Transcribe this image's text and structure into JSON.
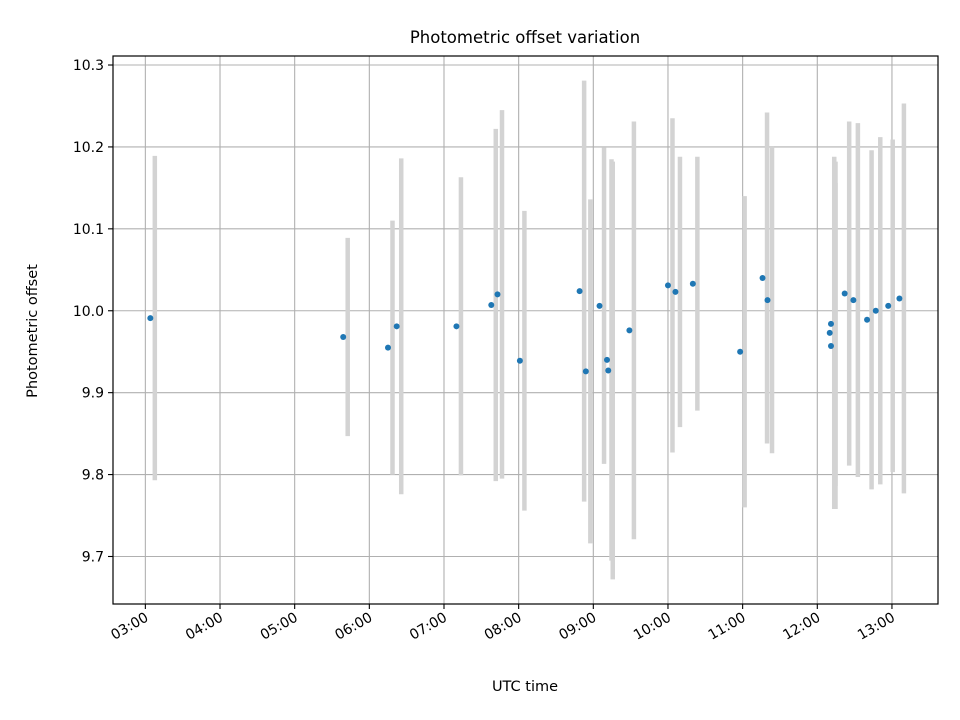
{
  "chart_data": {
    "type": "scatter",
    "title": "Photometric offset variation",
    "xlabel": "UTC time",
    "ylabel": "Photometric offset",
    "xlim": [
      "02:34",
      "13:37"
    ],
    "ylim": [
      9.642,
      10.311
    ],
    "x_ticks": [
      "03:00",
      "04:00",
      "05:00",
      "06:00",
      "07:00",
      "08:00",
      "09:00",
      "10:00",
      "11:00",
      "12:00",
      "13:00"
    ],
    "y_ticks": [
      "9.7",
      "9.8",
      "9.9",
      "10.0",
      "10.1",
      "10.2",
      "10.3"
    ],
    "grid": true,
    "colors": {
      "marker": "#1f77b4",
      "errorbar": "#d3d3d3",
      "grid": "#b0b0b0"
    },
    "series": [
      {
        "points": [
          {
            "t": "03:04",
            "y": 9.991,
            "err": 0.198
          },
          {
            "t": "05:39",
            "y": 9.968,
            "err": 0.121
          },
          {
            "t": "06:15",
            "y": 9.955,
            "err": 0.155
          },
          {
            "t": "06:22",
            "y": 9.981,
            "err": 0.205
          },
          {
            "t": "07:10",
            "y": 9.981,
            "err": 0.182
          },
          {
            "t": "07:38",
            "y": 10.007,
            "err": 0.215
          },
          {
            "t": "07:43",
            "y": 10.02,
            "err": 0.225
          },
          {
            "t": "08:01",
            "y": 9.939,
            "err": 0.183
          },
          {
            "t": "08:49",
            "y": 10.024,
            "err": 0.257
          },
          {
            "t": "08:54",
            "y": 9.926,
            "err": 0.21
          },
          {
            "t": "09:05",
            "y": 10.006,
            "err": 0.193
          },
          {
            "t": "09:11",
            "y": 9.94,
            "err": 0.245
          },
          {
            "t": "09:12",
            "y": 9.927,
            "err": 0.255
          },
          {
            "t": "09:29",
            "y": 9.976,
            "err": 0.255
          },
          {
            "t": "10:00",
            "y": 10.031,
            "err": 0.204
          },
          {
            "t": "10:06",
            "y": 10.023,
            "err": 0.165
          },
          {
            "t": "10:20",
            "y": 10.033,
            "err": 0.155
          },
          {
            "t": "10:58",
            "y": 9.95,
            "err": 0.19
          },
          {
            "t": "11:16",
            "y": 10.04,
            "err": 0.202
          },
          {
            "t": "11:20",
            "y": 10.013,
            "err": 0.187
          },
          {
            "t": "12:10",
            "y": 9.973,
            "err": 0.215
          },
          {
            "t": "12:11",
            "y": 9.984,
            "err": 0.198
          },
          {
            "t": "12:11",
            "y": 9.957,
            "err": 0.199
          },
          {
            "t": "12:22",
            "y": 10.021,
            "err": 0.21
          },
          {
            "t": "12:29",
            "y": 10.013,
            "err": 0.216
          },
          {
            "t": "12:40",
            "y": 9.989,
            "err": 0.207
          },
          {
            "t": "12:47",
            "y": 10.0,
            "err": 0.212
          },
          {
            "t": "12:57",
            "y": 10.006,
            "err": 0.203
          },
          {
            "t": "13:06",
            "y": 10.015,
            "err": 0.238
          }
        ]
      }
    ]
  }
}
